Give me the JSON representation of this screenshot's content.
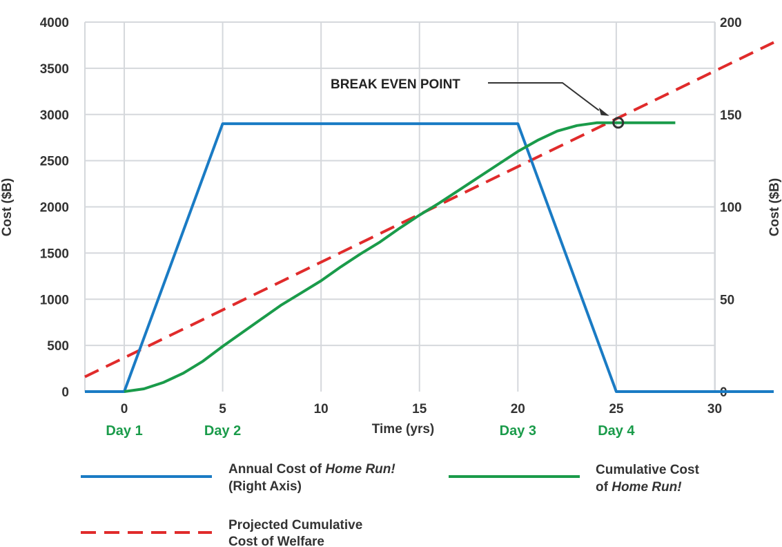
{
  "chart_data": {
    "type": "line",
    "xlabel": "Time (yrs)",
    "ylabel_left": "Cost ($B)",
    "ylabel_right": "Cost ($B)",
    "xlim": [
      -2,
      33
    ],
    "ylim_left": [
      0,
      4000
    ],
    "ylim_right": [
      0,
      200
    ],
    "x_ticks": [
      0,
      5,
      10,
      15,
      20,
      25,
      30
    ],
    "y_ticks_left": [
      0,
      500,
      1000,
      1500,
      2000,
      2500,
      3000,
      3500,
      4000
    ],
    "y_ticks_right": [
      0,
      50,
      100,
      150,
      200
    ],
    "grid": true,
    "day_markers": [
      {
        "x": 0,
        "label": "Day 1"
      },
      {
        "x": 5,
        "label": "Day 2"
      },
      {
        "x": 20,
        "label": "Day 3"
      },
      {
        "x": 25,
        "label": "Day 4"
      }
    ],
    "series": [
      {
        "name_parts": [
          "Annual Cost of ",
          "Home Run!",
          "(Right Axis)"
        ],
        "axis": "right",
        "color": "#1a7bc4",
        "style": "solid",
        "x": [
          -2,
          0,
          5,
          20,
          25,
          33
        ],
        "y": [
          0,
          0,
          145,
          145,
          0,
          0
        ]
      },
      {
        "name_parts": [
          "Cumulative Cost",
          "of ",
          "Home Run!"
        ],
        "axis": "left",
        "color": "#1a9b4a",
        "style": "solid",
        "x": [
          0,
          1,
          2,
          3,
          4,
          5,
          6,
          7,
          8,
          9,
          10,
          11,
          12,
          13,
          14,
          15,
          16,
          17,
          18,
          19,
          20,
          21,
          22,
          23,
          24,
          25,
          26,
          27,
          28
        ],
        "y": [
          0,
          30,
          100,
          200,
          330,
          490,
          640,
          790,
          940,
          1070,
          1200,
          1350,
          1490,
          1620,
          1770,
          1910,
          2040,
          2180,
          2320,
          2460,
          2600,
          2720,
          2820,
          2880,
          2910,
          2910,
          2910,
          2910,
          2910
        ]
      },
      {
        "name_parts": [
          "Projected Cumulative",
          "Cost of Welfare"
        ],
        "axis": "left",
        "color": "#e02b2b",
        "style": "dashed",
        "x": [
          -2,
          33
        ],
        "y": [
          160,
          3780
        ]
      }
    ],
    "annotations": [
      {
        "text": "BREAK EVEN POINT",
        "x": 25.1,
        "y": 2910,
        "marker": "circle"
      }
    ]
  }
}
